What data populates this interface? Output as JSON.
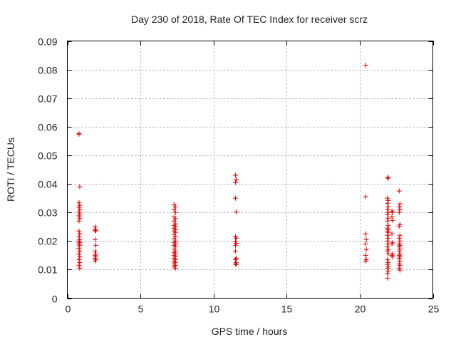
{
  "chart_data": {
    "type": "scatter",
    "title": "Day 230 of 2018, Rate Of TEC Index for receiver scrz",
    "xlabel": "GPS time / hours",
    "ylabel": "ROTI / TECUs",
    "xlim": [
      0,
      25
    ],
    "ylim": [
      0,
      0.09
    ],
    "x_ticks": [
      0,
      5,
      10,
      15,
      20,
      25
    ],
    "x_tick_labels": [
      "0",
      "5",
      "10",
      "15",
      "20",
      "25"
    ],
    "y_ticks": [
      0,
      0.01,
      0.02,
      0.03,
      0.04,
      0.05,
      0.06,
      0.07,
      0.08,
      0.09
    ],
    "y_tick_labels": [
      "0",
      "0.01",
      "0.02",
      "0.03",
      "0.04",
      "0.05",
      "0.06",
      "0.07",
      "0.08",
      "0.09"
    ],
    "grid": true,
    "marker": "plus",
    "color": "#e00000",
    "series": [
      {
        "points": [
          [
            0.8,
            0.0576
          ],
          [
            0.8,
            0.0574
          ],
          [
            0.85,
            0.039
          ],
          [
            0.8,
            0.0335
          ],
          [
            0.85,
            0.0325
          ],
          [
            0.8,
            0.0318
          ],
          [
            0.85,
            0.031
          ],
          [
            0.8,
            0.0302
          ],
          [
            0.85,
            0.0295
          ],
          [
            0.8,
            0.0288
          ],
          [
            0.85,
            0.028
          ],
          [
            0.8,
            0.027
          ],
          [
            0.8,
            0.0235
          ],
          [
            0.85,
            0.0225
          ],
          [
            0.8,
            0.0215
          ],
          [
            0.85,
            0.0205
          ],
          [
            0.8,
            0.02
          ],
          [
            0.85,
            0.0195
          ],
          [
            0.8,
            0.019
          ],
          [
            0.85,
            0.0185
          ],
          [
            0.8,
            0.0175
          ],
          [
            0.85,
            0.0165
          ],
          [
            0.8,
            0.0155
          ],
          [
            0.85,
            0.0145
          ],
          [
            0.8,
            0.0135
          ],
          [
            0.85,
            0.0125
          ],
          [
            0.8,
            0.0115
          ],
          [
            0.85,
            0.0105
          ],
          [
            1.9,
            0.025
          ],
          [
            1.95,
            0.0242
          ],
          [
            1.9,
            0.0238
          ],
          [
            1.95,
            0.0235
          ],
          [
            1.9,
            0.0205
          ],
          [
            1.95,
            0.0185
          ],
          [
            1.9,
            0.0165
          ],
          [
            1.95,
            0.0155
          ],
          [
            1.9,
            0.015
          ],
          [
            1.95,
            0.0145
          ],
          [
            1.9,
            0.014
          ],
          [
            1.95,
            0.0135
          ],
          [
            1.9,
            0.013
          ],
          [
            7.3,
            0.0328
          ],
          [
            7.4,
            0.032
          ],
          [
            7.3,
            0.031
          ],
          [
            7.4,
            0.03
          ],
          [
            7.3,
            0.0285
          ],
          [
            7.4,
            0.0278
          ],
          [
            7.3,
            0.027
          ],
          [
            7.4,
            0.026
          ],
          [
            7.3,
            0.0255
          ],
          [
            7.4,
            0.025
          ],
          [
            7.3,
            0.0245
          ],
          [
            7.4,
            0.024
          ],
          [
            7.3,
            0.0235
          ],
          [
            7.4,
            0.023
          ],
          [
            7.3,
            0.0222
          ],
          [
            7.4,
            0.0215
          ],
          [
            7.3,
            0.0208
          ],
          [
            7.4,
            0.02
          ],
          [
            7.3,
            0.0195
          ],
          [
            7.4,
            0.019
          ],
          [
            7.3,
            0.0185
          ],
          [
            7.4,
            0.018
          ],
          [
            7.3,
            0.0172
          ],
          [
            7.4,
            0.0165
          ],
          [
            7.3,
            0.016
          ],
          [
            7.4,
            0.0155
          ],
          [
            7.3,
            0.015
          ],
          [
            7.4,
            0.0145
          ],
          [
            7.3,
            0.014
          ],
          [
            7.4,
            0.0135
          ],
          [
            7.3,
            0.013
          ],
          [
            7.4,
            0.0125
          ],
          [
            7.3,
            0.012
          ],
          [
            7.4,
            0.0115
          ],
          [
            7.3,
            0.011
          ],
          [
            7.4,
            0.0105
          ],
          [
            11.5,
            0.043
          ],
          [
            11.55,
            0.0415
          ],
          [
            11.5,
            0.0405
          ],
          [
            11.5,
            0.035
          ],
          [
            11.55,
            0.0302
          ],
          [
            11.5,
            0.0215
          ],
          [
            11.55,
            0.021
          ],
          [
            11.5,
            0.0198
          ],
          [
            11.55,
            0.0192
          ],
          [
            11.5,
            0.0185
          ],
          [
            11.5,
            0.0165
          ],
          [
            11.55,
            0.014
          ],
          [
            11.5,
            0.0135
          ],
          [
            11.55,
            0.0125
          ],
          [
            11.5,
            0.012
          ],
          [
            11.55,
            0.0118
          ],
          [
            20.4,
            0.0815
          ],
          [
            20.4,
            0.0355
          ],
          [
            20.4,
            0.0225
          ],
          [
            20.45,
            0.0205
          ],
          [
            20.4,
            0.019
          ],
          [
            20.45,
            0.017
          ],
          [
            20.4,
            0.015
          ],
          [
            20.45,
            0.0135
          ],
          [
            20.4,
            0.013
          ],
          [
            21.9,
            0.0422
          ],
          [
            21.95,
            0.042
          ],
          [
            21.9,
            0.035
          ],
          [
            21.95,
            0.0342
          ],
          [
            21.9,
            0.0332
          ],
          [
            21.95,
            0.032
          ],
          [
            21.9,
            0.031
          ],
          [
            21.95,
            0.03
          ],
          [
            21.9,
            0.0292
          ],
          [
            21.95,
            0.028
          ],
          [
            21.9,
            0.027
          ],
          [
            21.95,
            0.0255
          ],
          [
            21.9,
            0.0245
          ],
          [
            21.95,
            0.024
          ],
          [
            21.9,
            0.0235
          ],
          [
            21.95,
            0.023
          ],
          [
            21.9,
            0.022
          ],
          [
            21.95,
            0.021
          ],
          [
            21.9,
            0.02
          ],
          [
            21.95,
            0.019
          ],
          [
            21.9,
            0.018
          ],
          [
            21.95,
            0.017
          ],
          [
            21.9,
            0.0165
          ],
          [
            21.95,
            0.0155
          ],
          [
            21.9,
            0.0135
          ],
          [
            21.95,
            0.0125
          ],
          [
            21.9,
            0.0118
          ],
          [
            21.95,
            0.011
          ],
          [
            21.9,
            0.0105
          ],
          [
            21.95,
            0.0095
          ],
          [
            21.9,
            0.0085
          ],
          [
            21.9,
            0.007
          ],
          [
            22.2,
            0.0305
          ],
          [
            22.25,
            0.03
          ],
          [
            22.2,
            0.0285
          ],
          [
            22.25,
            0.0272
          ],
          [
            22.2,
            0.0225
          ],
          [
            22.25,
            0.0195
          ],
          [
            22.2,
            0.019
          ],
          [
            22.25,
            0.0155
          ],
          [
            22.2,
            0.015
          ],
          [
            22.25,
            0.0145
          ],
          [
            22.7,
            0.0375
          ],
          [
            22.75,
            0.033
          ],
          [
            22.7,
            0.032
          ],
          [
            22.75,
            0.031
          ],
          [
            22.7,
            0.03
          ],
          [
            22.75,
            0.0258
          ],
          [
            22.7,
            0.0252
          ],
          [
            22.75,
            0.022
          ],
          [
            22.7,
            0.021
          ],
          [
            22.75,
            0.02
          ],
          [
            22.7,
            0.019
          ],
          [
            22.75,
            0.0185
          ],
          [
            22.7,
            0.018
          ],
          [
            22.75,
            0.0172
          ],
          [
            22.7,
            0.0165
          ],
          [
            22.75,
            0.0155
          ],
          [
            22.7,
            0.015
          ],
          [
            22.75,
            0.0145
          ],
          [
            22.7,
            0.014
          ],
          [
            22.75,
            0.013
          ],
          [
            22.7,
            0.012
          ],
          [
            22.75,
            0.0115
          ],
          [
            22.7,
            0.0105
          ],
          [
            22.75,
            0.0098
          ]
        ]
      }
    ]
  }
}
